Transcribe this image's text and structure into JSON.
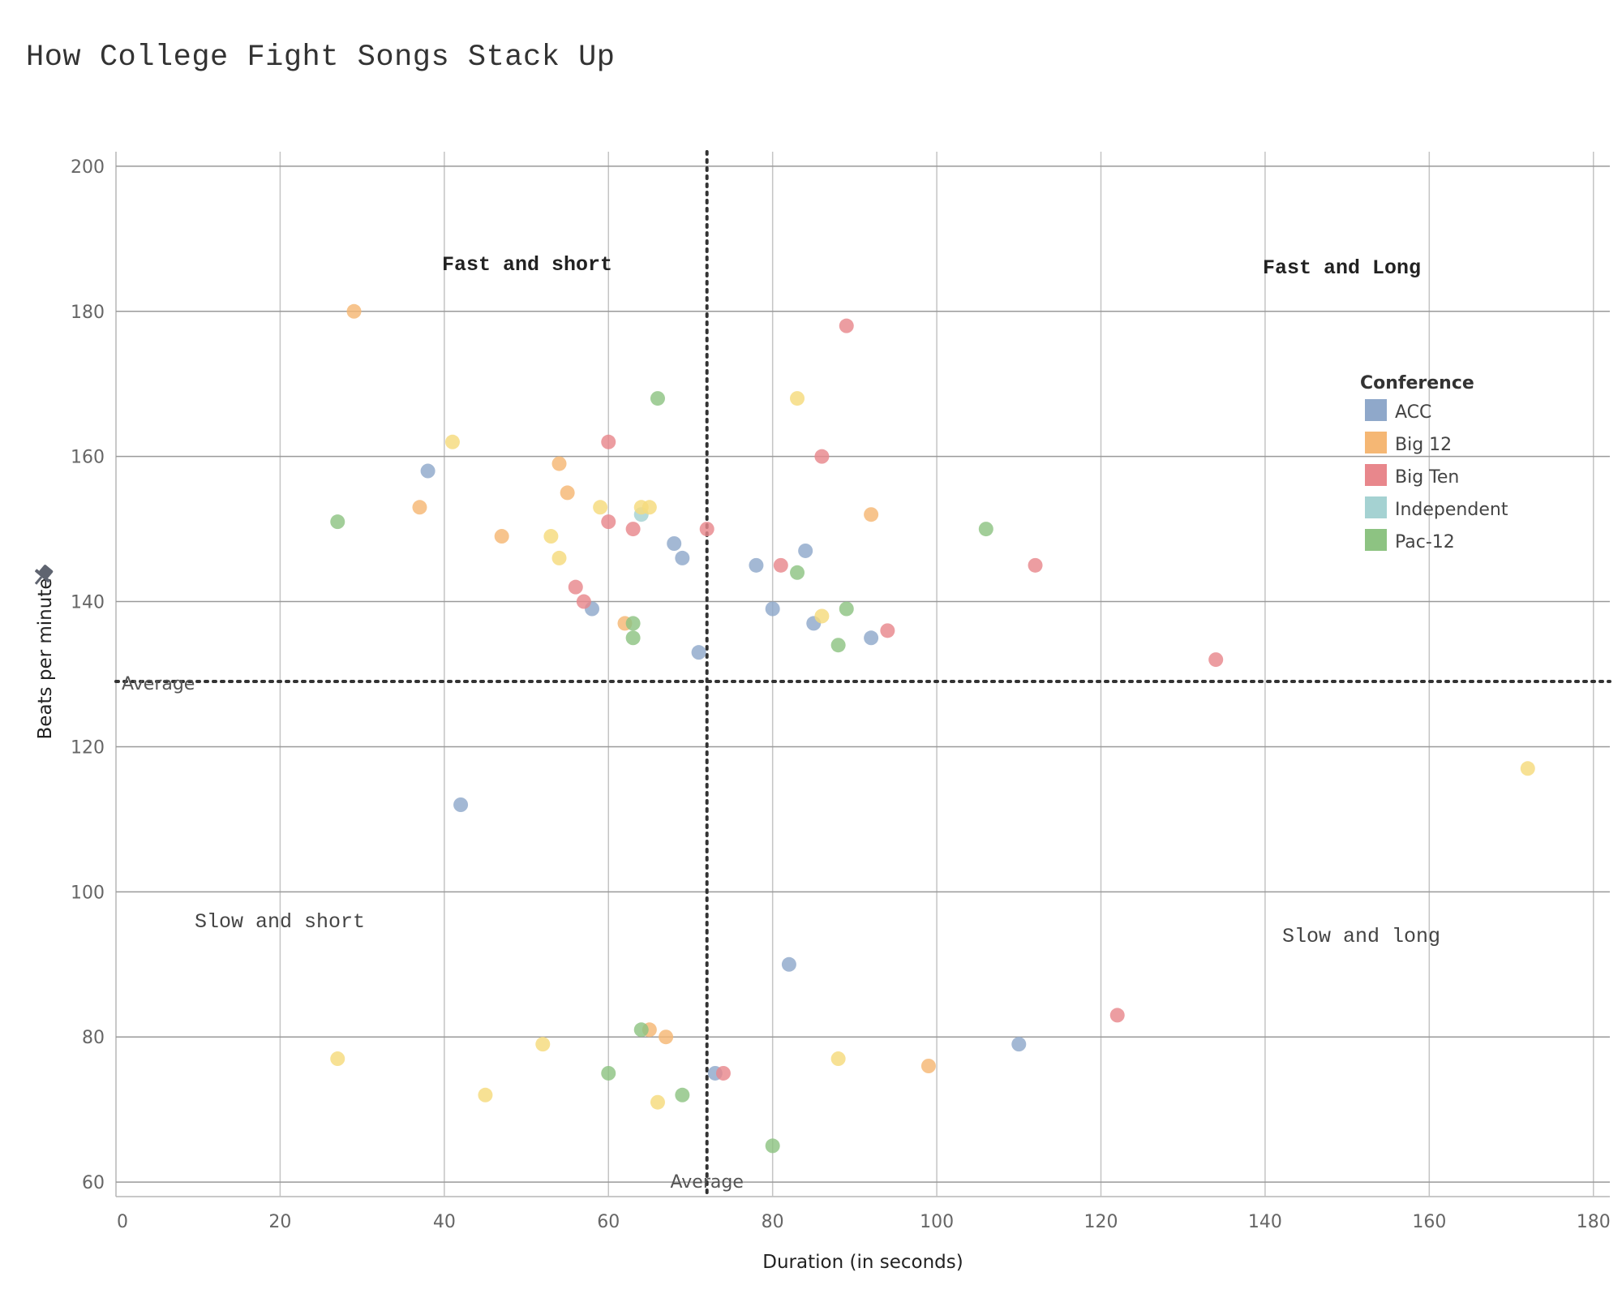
{
  "chart_data": {
    "type": "scatter",
    "title": "How College Fight Songs Stack Up",
    "xlabel": "Duration (in seconds)",
    "ylabel": "Beats per minute",
    "xlim": [
      0,
      182
    ],
    "ylim": [
      58,
      202
    ],
    "x_ticks": [
      0,
      20,
      40,
      60,
      80,
      100,
      120,
      140,
      160,
      180
    ],
    "y_ticks": [
      60,
      80,
      100,
      120,
      140,
      160,
      180,
      200
    ],
    "grid": true,
    "average": {
      "x": 72,
      "y": 129,
      "x_label": "Average",
      "y_label": "Average"
    },
    "quadrant_labels": {
      "top_left": "Fast and short",
      "top_right": "Fast and Long",
      "bottom_left": "Slow and short",
      "bottom_right": "Slow and long"
    },
    "legend": {
      "title": "Conference",
      "position": "right"
    },
    "series": [
      {
        "name": "ACC",
        "color": "#8fa8ca",
        "points": [
          [
            38,
            158
          ],
          [
            42,
            112
          ],
          [
            58,
            139
          ],
          [
            68,
            148
          ],
          [
            69,
            146
          ],
          [
            71,
            133
          ],
          [
            73,
            75
          ],
          [
            78,
            145
          ],
          [
            80,
            139
          ],
          [
            82,
            90
          ],
          [
            84,
            147
          ],
          [
            85,
            137
          ],
          [
            92,
            135
          ],
          [
            110,
            79
          ]
        ]
      },
      {
        "name": "Big 12",
        "color": "#f5b774",
        "points": [
          [
            29,
            180
          ],
          [
            37,
            153
          ],
          [
            47,
            149
          ],
          [
            54,
            159
          ],
          [
            55,
            155
          ],
          [
            62,
            137
          ],
          [
            65,
            81
          ],
          [
            67,
            80
          ],
          [
            92,
            152
          ],
          [
            99,
            76
          ]
        ]
      },
      {
        "name": "Big Ten",
        "color": "#e8878c",
        "points": [
          [
            56,
            142
          ],
          [
            57,
            140
          ],
          [
            60,
            162
          ],
          [
            60,
            151
          ],
          [
            63,
            150
          ],
          [
            72,
            150
          ],
          [
            74,
            75
          ],
          [
            81,
            145
          ],
          [
            86,
            160
          ],
          [
            89,
            178
          ],
          [
            94,
            136
          ],
          [
            112,
            145
          ],
          [
            122,
            83
          ],
          [
            134,
            132
          ]
        ]
      },
      {
        "name": "Independent",
        "color": "#a5d2d2",
        "points": [
          [
            64,
            152
          ]
        ]
      },
      {
        "name": "Pac-12",
        "color": "#8dc382",
        "points": [
          [
            27,
            151
          ],
          [
            60,
            75
          ],
          [
            63,
            137
          ],
          [
            63,
            135
          ],
          [
            64,
            81
          ],
          [
            66,
            168
          ],
          [
            69,
            72
          ],
          [
            80,
            65
          ],
          [
            83,
            144
          ],
          [
            88,
            134
          ],
          [
            89,
            139
          ],
          [
            106,
            150
          ]
        ]
      },
      {
        "name": "",
        "color": "#f5db7c",
        "points": [
          [
            27,
            77
          ],
          [
            41,
            162
          ],
          [
            45,
            72
          ],
          [
            52,
            79
          ],
          [
            53,
            149
          ],
          [
            54,
            146
          ],
          [
            59,
            153
          ],
          [
            64,
            153
          ],
          [
            65,
            153
          ],
          [
            66,
            71
          ],
          [
            83,
            168
          ],
          [
            86,
            138
          ],
          [
            88,
            77
          ],
          [
            172,
            117
          ]
        ]
      }
    ]
  }
}
